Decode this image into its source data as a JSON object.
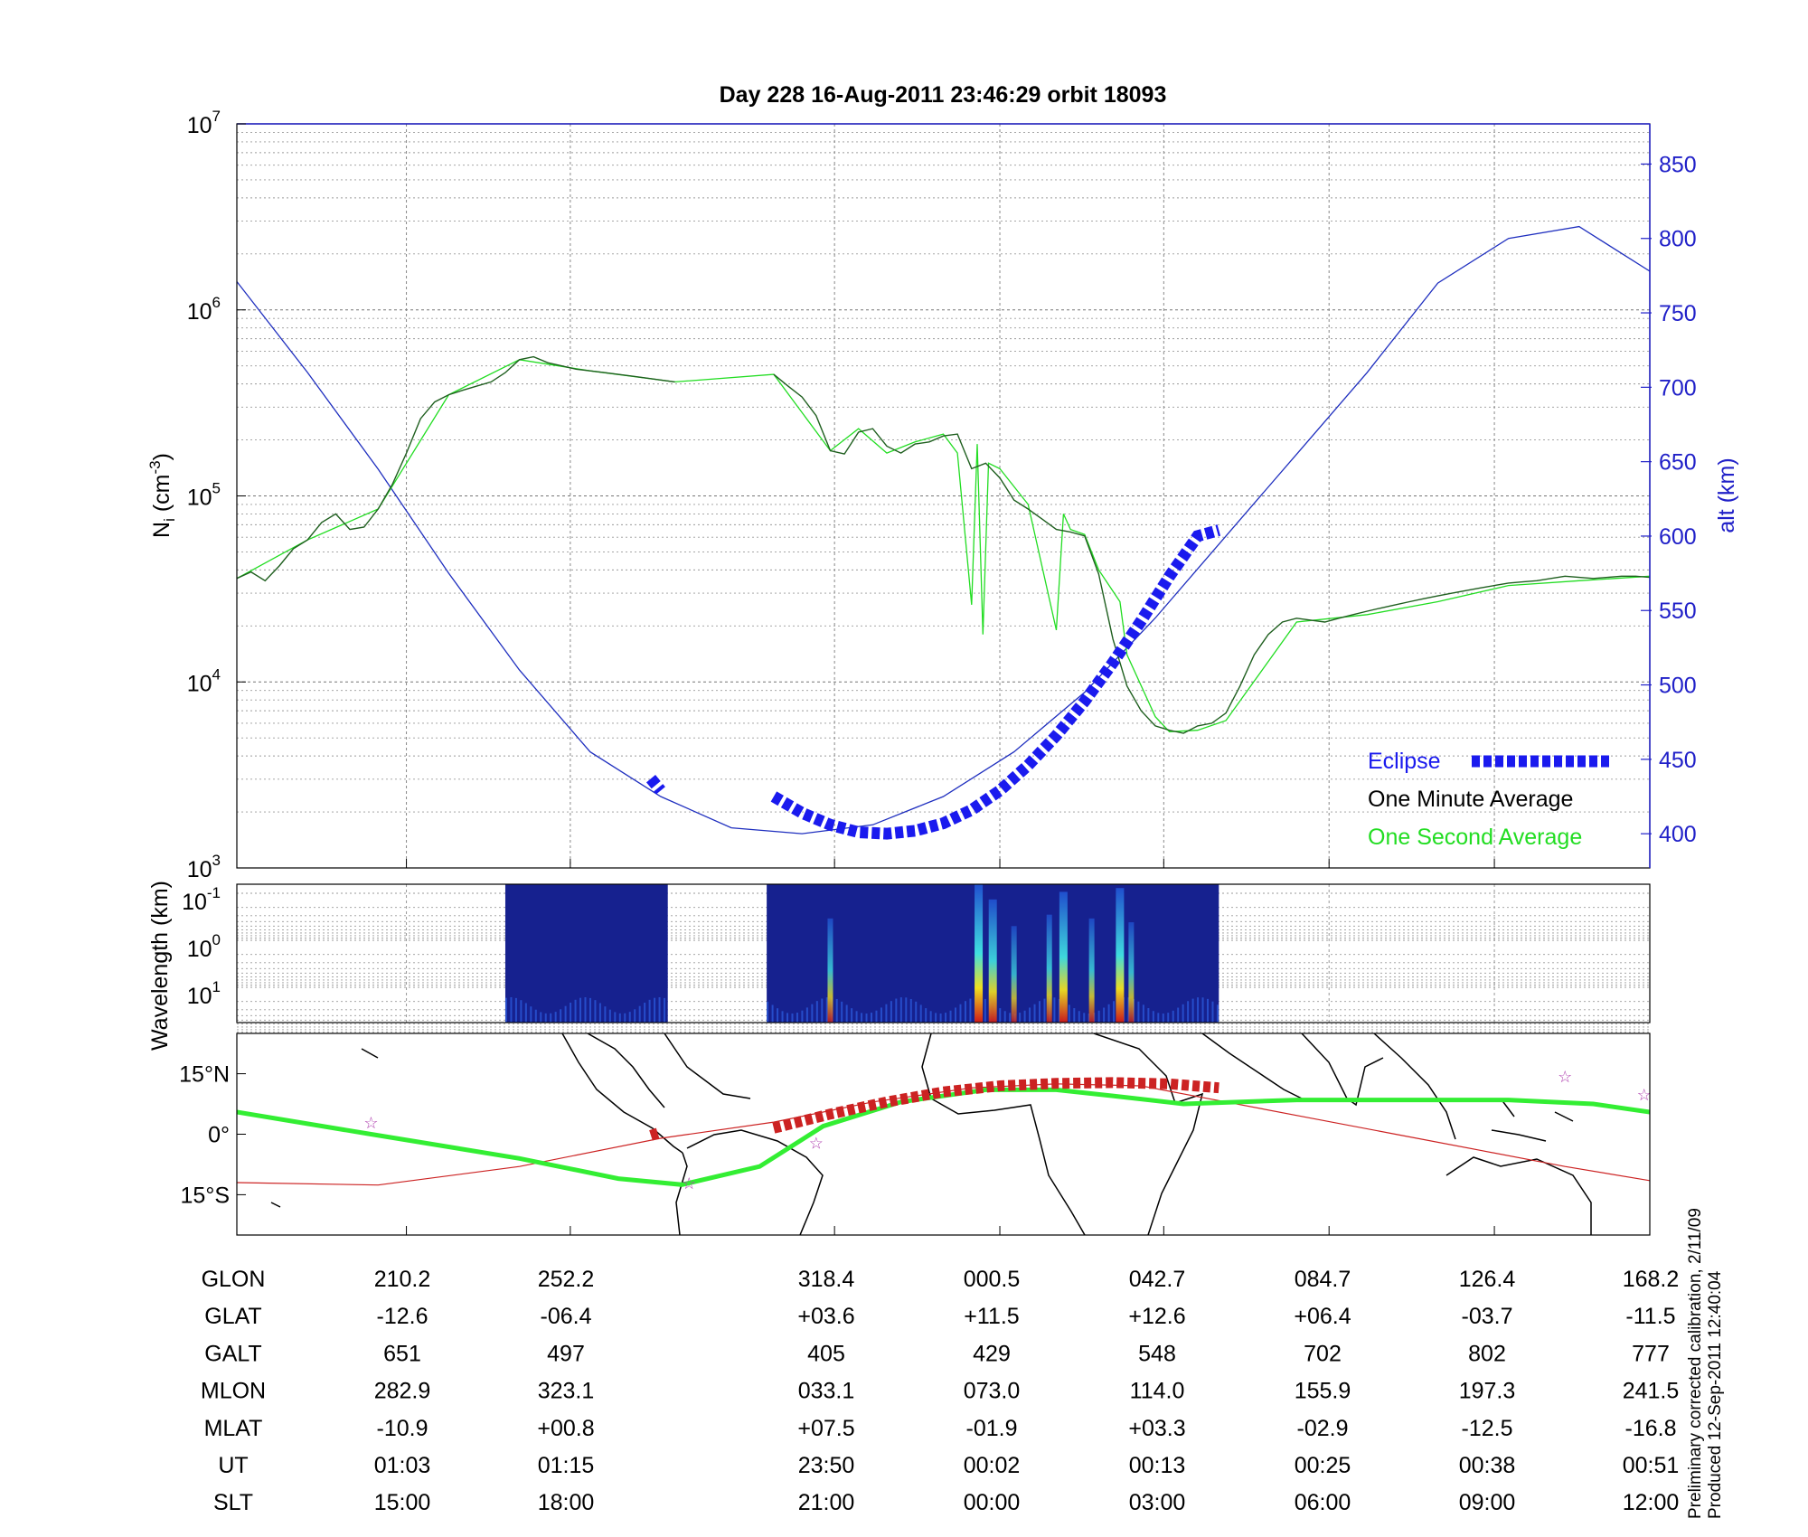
{
  "title": "Day 228  16-Aug-2011 23:46:29   orbit 18093",
  "colors": {
    "axis_blue": "#2020c8",
    "altitude_line": "#1f2fbf",
    "eclipse": "#1a1aee",
    "one_minute_avg": "#1f5f1f",
    "one_second_avg": "#22dd22",
    "track_red": "#cc2222",
    "track_green": "#33ee33",
    "star": "#b040b0"
  },
  "chart_data": [
    {
      "type": "line",
      "name": "density_and_altitude",
      "x_unit": "sample index 0-100 (0 = 01:03 UT, 100 = 00:51 UT)",
      "y_left_label_main": "N",
      "y_left_label_sub": "i",
      "y_left_label_unit": " (cm",
      "y_left_label_exp": "-3",
      "y_left_label_close": ")",
      "y_left_scale": "log",
      "y_left_ticks": [
        {
          "base": "10",
          "exp": "3",
          "value": 1000
        },
        {
          "base": "10",
          "exp": "4",
          "value": 10000
        },
        {
          "base": "10",
          "exp": "5",
          "value": 100000
        },
        {
          "base": "10",
          "exp": "6",
          "value": 1000000
        },
        {
          "base": "10",
          "exp": "7",
          "value": 10000000
        }
      ],
      "ylim_left": [
        1000,
        10000000
      ],
      "y_right_label": "alt (km)",
      "y_right_ticks": [
        "400",
        "450",
        "500",
        "550",
        "600",
        "650",
        "700",
        "750",
        "800",
        "850"
      ],
      "ylim_right": [
        377,
        877
      ],
      "legend": [
        {
          "label": "Eclipse",
          "color": "#1a1aee"
        },
        {
          "label": "One Minute Average",
          "color": "#000000"
        },
        {
          "label": "One Second Average",
          "color": "#22dd22"
        }
      ],
      "legend_position": "bottom-right",
      "grid": true,
      "series": [
        {
          "name": "One Minute Average",
          "segments": [
            {
              "x": [
                0,
                1,
                2,
                3,
                4,
                5,
                6,
                7,
                8,
                9,
                10,
                11,
                12,
                13,
                14,
                15,
                16,
                17,
                18,
                19,
                20,
                21,
                22,
                23,
                24,
                25,
                26,
                27,
                28,
                29,
                30,
                31
              ],
              "y": [
                36000,
                39000,
                35000,
                42000,
                52000,
                58000,
                72000,
                80000,
                66000,
                68000,
                85000,
                115000,
                170000,
                260000,
                320000,
                350000,
                370000,
                390000,
                410000,
                460000,
                540000,
                560000,
                520000,
                500000,
                480000,
                470000,
                460000,
                450000,
                440000,
                430000,
                420000,
                410000
              ]
            },
            {
              "x": [
                38,
                39,
                40,
                41,
                42,
                43,
                44,
                45,
                46,
                47,
                48,
                49,
                50,
                51,
                52,
                53,
                54,
                55,
                56,
                57,
                58,
                59,
                60,
                61,
                62,
                63,
                64,
                65,
                66,
                67,
                68,
                69,
                70,
                71,
                72,
                73,
                74,
                75,
                76,
                77,
                78,
                79,
                80,
                81,
                82,
                83,
                84,
                85,
                86,
                87,
                88,
                89,
                90,
                91,
                92,
                93,
                94,
                95,
                96,
                97,
                98,
                99,
                100
              ],
              "y": [
                450000,
                390000,
                340000,
                270000,
                175000,
                168000,
                220000,
                230000,
                185000,
                170000,
                190000,
                195000,
                210000,
                215000,
                140000,
                150000,
                125000,
                95000,
                85000,
                75000,
                66000,
                64000,
                61000,
                38000,
                17000,
                9500,
                7000,
                5800,
                5500,
                5300,
                5800,
                6000,
                6800,
                9500,
                14000,
                18000,
                21000,
                22000,
                21500,
                21000,
                22000,
                23000,
                24000,
                25000,
                26000,
                27000,
                28000,
                29000,
                30000,
                31000,
                32000,
                33000,
                34000,
                34500,
                35000,
                36000,
                37000,
                36500,
                36000,
                36500,
                37000,
                37000,
                36500
              ]
            }
          ]
        },
        {
          "name": "One Second Average",
          "x": [
            0,
            5,
            10,
            15,
            20,
            25,
            31,
            38,
            42,
            44,
            46,
            48,
            50,
            51,
            52,
            52.4,
            52.8,
            53.2,
            54,
            56,
            58,
            58.5,
            59,
            60,
            61,
            62.5,
            63,
            65,
            66,
            68,
            70,
            75,
            80,
            85,
            90,
            95,
            100
          ],
          "y": [
            36000,
            58000,
            85000,
            350000,
            540000,
            470000,
            410000,
            450000,
            175000,
            230000,
            170000,
            195000,
            215000,
            170000,
            26000,
            190000,
            18000,
            150000,
            140000,
            90000,
            19000,
            80000,
            66000,
            62000,
            40000,
            27000,
            14000,
            6500,
            5400,
            5500,
            6200,
            21000,
            23000,
            27000,
            33000,
            35000,
            37000
          ]
        },
        {
          "name": "altitude (km)",
          "axis": "right",
          "x": [
            0,
            5,
            10,
            15,
            20,
            25,
            30,
            35,
            40,
            45,
            50,
            55,
            60,
            65,
            70,
            75,
            80,
            85,
            90,
            95,
            100
          ],
          "y": [
            771,
            710,
            645,
            575,
            510,
            455,
            425,
            404,
            400,
            406,
            425,
            455,
            495,
            545,
            600,
            655,
            710,
            770,
            800,
            808,
            778
          ]
        },
        {
          "name": "Eclipse",
          "axis": "right",
          "segments": [
            {
              "x": [
                29.3,
                30.0
              ],
              "y": [
                437,
                429
              ]
            },
            {
              "x": [
                38,
                40,
                42,
                44,
                46,
                48,
                50,
                52,
                54,
                56,
                58,
                60,
                62,
                64,
                66,
                68,
                69.5
              ],
              "y": [
                425,
                414,
                406,
                401,
                400,
                402,
                407,
                416,
                429,
                446,
                466,
                489,
                515,
                543,
                573,
                600,
                604
              ]
            }
          ]
        }
      ]
    },
    {
      "type": "heatmap",
      "name": "spectrogram",
      "y_label": "Wavelength (km)",
      "y_ticks": [
        {
          "base": "10",
          "exp": "-1"
        },
        {
          "base": "10",
          "exp": "0"
        },
        {
          "base": "10",
          "exp": "1"
        }
      ],
      "data_ranges": [
        [
          19,
          30.5
        ],
        [
          37.5,
          69.5
        ]
      ],
      "intensity_bursts": [
        {
          "x": 42,
          "level": 0.55
        },
        {
          "x": 52.5,
          "level": 1.0
        },
        {
          "x": 53.5,
          "level": 0.8
        },
        {
          "x": 55,
          "level": 0.45
        },
        {
          "x": 57.5,
          "level": 0.6
        },
        {
          "x": 58.5,
          "level": 0.9
        },
        {
          "x": 60.5,
          "level": 0.55
        },
        {
          "x": 62.5,
          "level": 0.95
        },
        {
          "x": 63.3,
          "level": 0.5
        }
      ]
    },
    {
      "type": "line",
      "name": "map_track",
      "y_ticks": [
        "15°N",
        "0°",
        "15°S"
      ],
      "ylim": [
        -25,
        25
      ],
      "series": [
        {
          "name": "orbit track",
          "x": [
            0,
            10,
            20,
            30,
            38,
            45,
            52,
            58,
            64,
            70,
            76,
            82,
            88,
            94,
            100
          ],
          "y": [
            -12,
            -12.6,
            -8,
            -1,
            3,
            8,
            11.5,
            12.5,
            12,
            8,
            4,
            0,
            -4,
            -8,
            -11.5
          ]
        },
        {
          "name": "red eclipse track",
          "segments": [
            {
              "x": [
                29.3,
                30.0
              ],
              "y": [
                -0.3,
                0.5
              ]
            },
            {
              "x": [
                38,
                42,
                46,
                50,
                54,
                58,
                62,
                66,
                69.5
              ],
              "y": [
                1.5,
                5,
                8,
                10.5,
                12,
                12.6,
                12.8,
                12.5,
                11.5
              ]
            }
          ]
        },
        {
          "name": "magnetic equator",
          "x": [
            0,
            9.5,
            20,
            27,
            31.5,
            37,
            41.5,
            47,
            53,
            58,
            62,
            67,
            75,
            82,
            90,
            96,
            100
          ],
          "y": [
            5.5,
            0,
            -6,
            -11,
            -12.5,
            -8,
            2,
            8,
            11,
            11,
            9.5,
            7.5,
            8.5,
            8.5,
            8.5,
            7.5,
            5.5
          ]
        },
        {
          "name": "stars",
          "x": [
            9.5,
            32,
            41,
            94,
            99.6
          ],
          "y": [
            3,
            -12,
            -2,
            14.5,
            10
          ]
        }
      ]
    }
  ],
  "table": {
    "row_labels": [
      "GLON",
      "GLAT",
      "GALT",
      "MLON",
      "MLAT",
      "UT",
      "SLT"
    ],
    "columns": [
      [
        "210.2",
        "-12.6",
        "651",
        "282.9",
        "-10.9",
        "01:03",
        "15:00"
      ],
      [
        "252.2",
        "-06.4",
        "497",
        "323.1",
        "+00.8",
        "01:15",
        "18:00"
      ],
      [
        "318.4",
        "+03.6",
        "405",
        "033.1",
        "+07.5",
        "23:50",
        "21:00"
      ],
      [
        "000.5",
        "+11.5",
        "429",
        "073.0",
        "-01.9",
        "00:02",
        "00:00"
      ],
      [
        "042.7",
        "+12.6",
        "548",
        "114.0",
        "+03.3",
        "00:13",
        "03:00"
      ],
      [
        "084.7",
        "+06.4",
        "702",
        "155.9",
        "-02.9",
        "00:25",
        "06:00"
      ],
      [
        "126.4",
        "-03.7",
        "802",
        "197.3",
        "-12.5",
        "00:38",
        "09:00"
      ],
      [
        "168.2",
        "-11.5",
        "777",
        "241.5",
        "-16.8",
        "00:51",
        "12:00"
      ]
    ]
  },
  "footnote": {
    "line1": "Preliminary corrected calibration, 2/11/09",
    "line2": "Produced 12-Sep-2011 12:40:04"
  }
}
